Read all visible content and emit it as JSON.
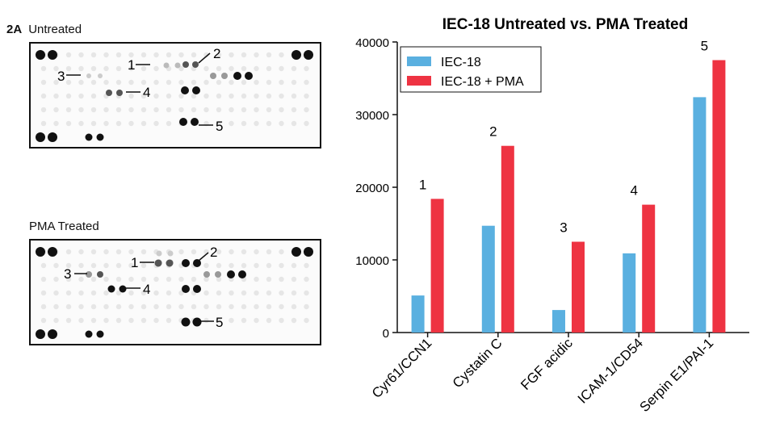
{
  "panels": {
    "figure_label": "2A",
    "untreated_label": "Untreated",
    "treated_label": "PMA Treated",
    "callout_numbers": [
      "1",
      "2",
      "3",
      "4",
      "5"
    ]
  },
  "chart_data": {
    "type": "bar",
    "title": "IEC-18 Untreated vs. PMA Treated",
    "xlabel": "",
    "ylabel": "",
    "categories": [
      "Cyr61/CCN1",
      "Cystatin C",
      "FGF acidic",
      "ICAM-1/CD54",
      "Serpin E1/PAI-1"
    ],
    "bar_labels": [
      "1",
      "2",
      "3",
      "4",
      "5"
    ],
    "ylim": [
      0,
      40000
    ],
    "yticks": [
      0,
      10000,
      20000,
      30000,
      40000
    ],
    "legend_position": "top-left",
    "grid": false,
    "series": [
      {
        "name": "IEC-18",
        "color": "#5ab0e0",
        "values": [
          5100,
          14700,
          3100,
          10900,
          32400
        ]
      },
      {
        "name": "IEC-18 + PMA",
        "color": "#ee3342",
        "values": [
          18400,
          25700,
          12500,
          17600,
          37500
        ]
      }
    ]
  }
}
